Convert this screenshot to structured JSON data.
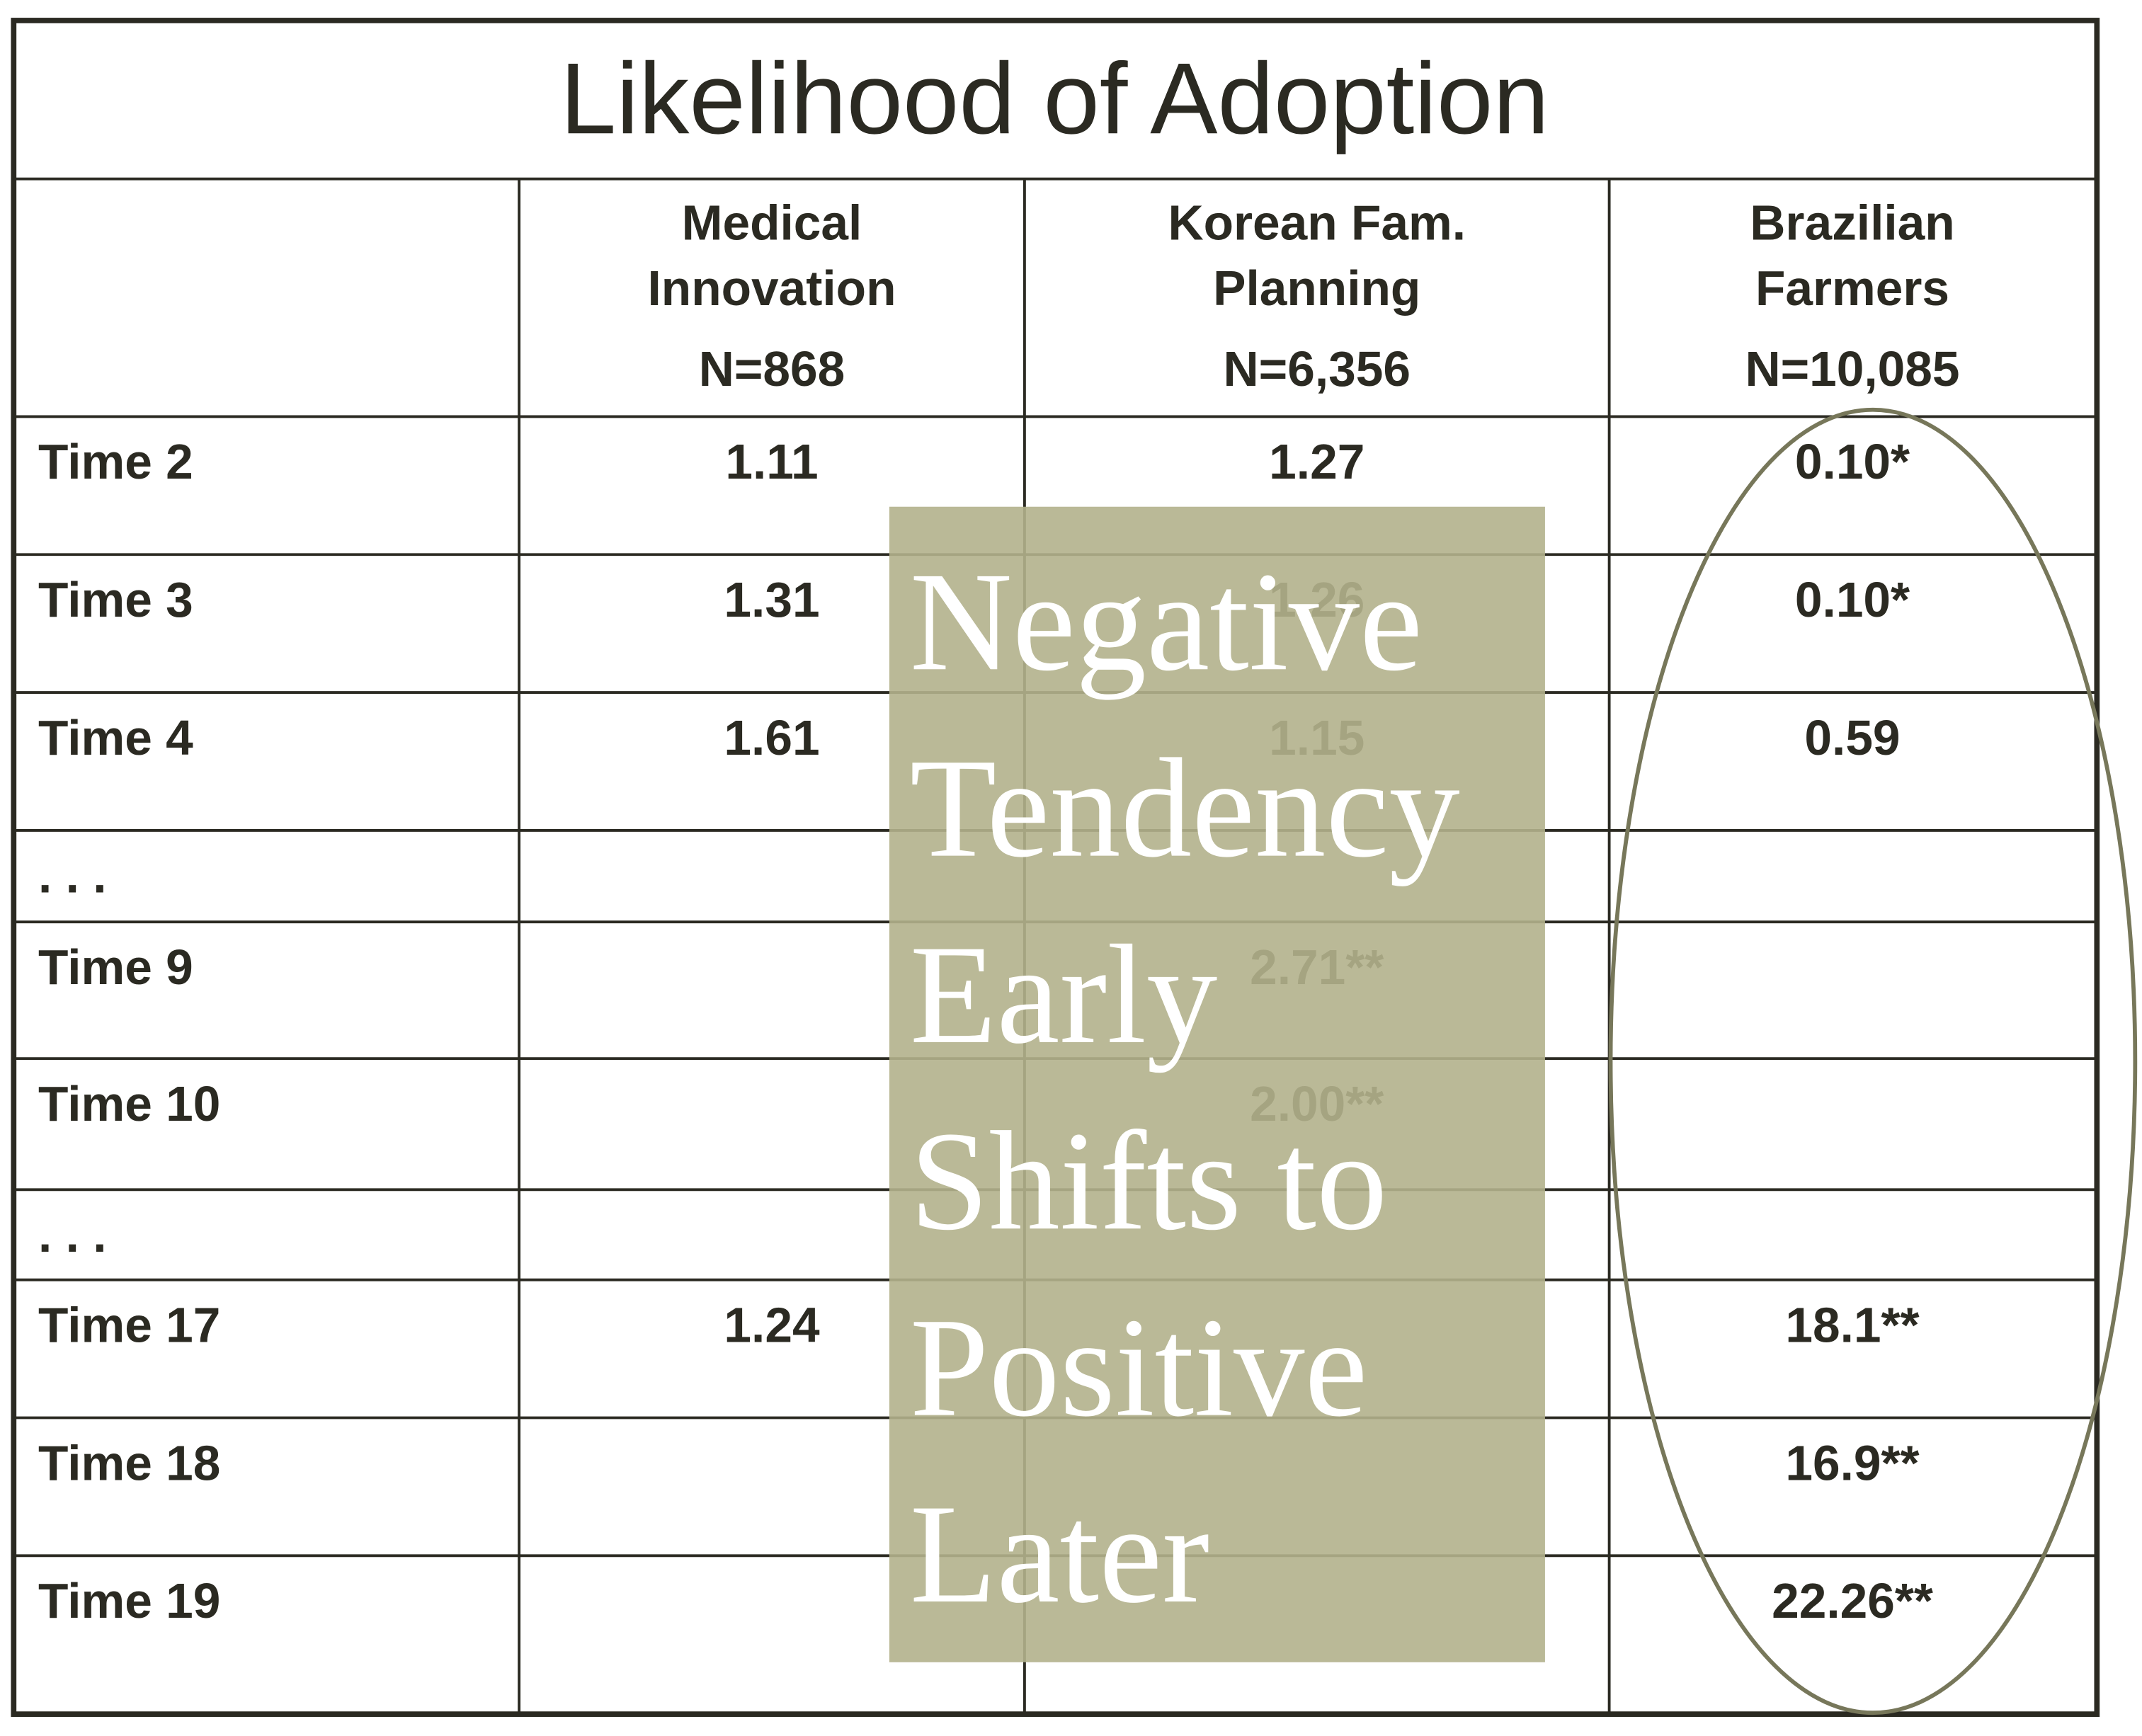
{
  "table": {
    "title": "Likelihood of Adoption",
    "columns": [
      {
        "lines": [
          "Medical",
          "Innovation"
        ],
        "n": "N=868"
      },
      {
        "lines": [
          "Korean Fam.",
          "Planning"
        ],
        "n": "N=6,356"
      },
      {
        "lines": [
          "Brazilian",
          "Farmers"
        ],
        "n": "N=10,085"
      }
    ],
    "rows": [
      {
        "label": "Time 2",
        "cells": [
          "1.11",
          "1.27",
          "0.10*"
        ]
      },
      {
        "label": "Time 3",
        "cells": [
          "1.31",
          "1.26",
          "0.10*"
        ]
      },
      {
        "label": "Time 4",
        "cells": [
          "1.61",
          "1.15",
          "0.59"
        ]
      },
      {
        "label": ". . .",
        "cells": [
          null,
          null,
          null
        ]
      },
      {
        "label": "Time 9",
        "cells": [
          null,
          "2.71**",
          null
        ]
      },
      {
        "label": "Time 10",
        "cells": [
          null,
          "2.00**",
          null
        ]
      },
      {
        "label": ". . .",
        "cells": [
          null,
          null,
          null
        ]
      },
      {
        "label": "Time 17",
        "cells": [
          "1.24",
          null,
          "18.1**"
        ]
      },
      {
        "label": "Time 18",
        "cells": [
          null,
          null,
          "16.9**"
        ]
      },
      {
        "label": "Time 19",
        "cells": [
          null,
          null,
          "22.26**"
        ]
      }
    ]
  },
  "overlay": {
    "lines": [
      "Negative",
      "Tendency",
      "Early",
      "Shifts to",
      "Positive",
      "Later"
    ]
  }
}
